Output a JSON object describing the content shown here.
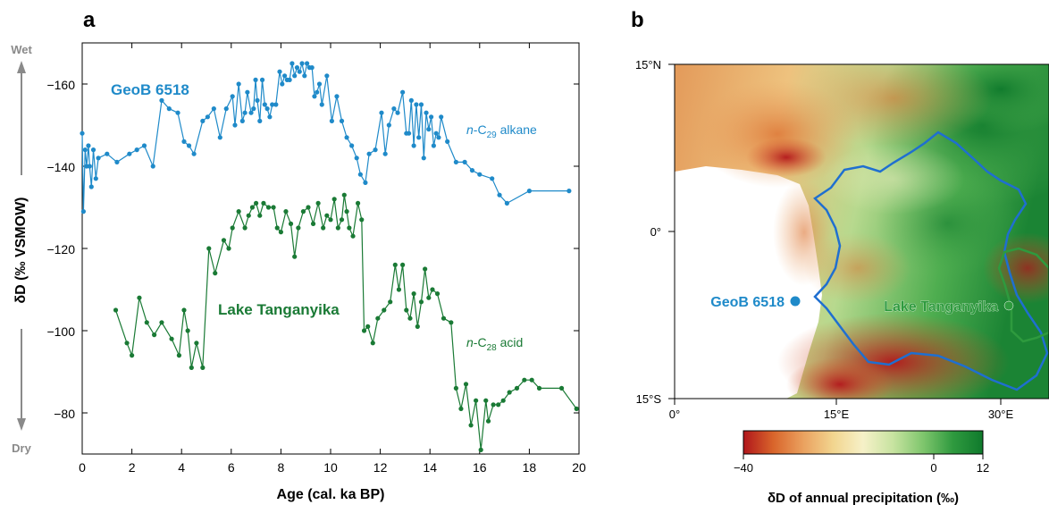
{
  "colors": {
    "blue": "#1f8ac9",
    "green": "#1a7a35",
    "axis_gray": "#8a8a8a",
    "river_blue": "#1f6fd0",
    "river_green": "#2e9a3e"
  },
  "panel_a": {
    "label": "a",
    "xlabel": "Age (cal. ka BP)",
    "ylabel": "δD (‰ VSMOW)",
    "wet_label": "Wet",
    "dry_label": "Dry",
    "xticks": [
      "0",
      "2",
      "4",
      "6",
      "8",
      "10",
      "12",
      "14",
      "16",
      "18",
      "20"
    ],
    "yticks": [
      "−160",
      "−140",
      "−120",
      "−100",
      "−80"
    ],
    "annotations": {
      "geob_title": "GeoB 6518",
      "tang_title": "Lake Tanganyika",
      "alkane_label": "n-C29 alkane",
      "acid_label": "n-C28 acid"
    }
  },
  "panel_b": {
    "label": "b",
    "lat_ticks": [
      "15°N",
      "0°",
      "15°S"
    ],
    "lon_ticks": [
      "0°",
      "15°E",
      "30°E"
    ],
    "site_geob": "GeoB 6518",
    "site_tang": "Lake Tanganyika",
    "colorbar_ticks": [
      "−40",
      "0",
      "12"
    ],
    "colorbar_title": "δD of annual precipitation (‰)",
    "colorbar_stops": [
      "#b0161b",
      "#d9652b",
      "#eaa15f",
      "#f2d58f",
      "#f6f1c8",
      "#c7e3a0",
      "#7fc66d",
      "#2f9a3f",
      "#0f7a2c"
    ]
  },
  "chart_data": [
    {
      "type": "line",
      "title": "",
      "xlabel": "Age (cal. ka BP)",
      "ylabel": "δD (‰ VSMOW)",
      "xlim": [
        0,
        20
      ],
      "ylim": [
        -70,
        -170
      ],
      "y_axis_inverted": true,
      "grid": false,
      "series": [
        {
          "name": "n-C29 alkane",
          "x": [
            0,
            0.05,
            0.12,
            0.18,
            0.25,
            0.3,
            0.37,
            0.45,
            0.55,
            0.65,
            1.0,
            1.4,
            1.9,
            2.2,
            2.5,
            2.85,
            3.2,
            3.5,
            3.85,
            4.1,
            4.3,
            4.5,
            4.85,
            5.05,
            5.3,
            5.55,
            5.8,
            6.05,
            6.15,
            6.3,
            6.45,
            6.55,
            6.65,
            6.8,
            6.9,
            6.98,
            7.05,
            7.15,
            7.25,
            7.35,
            7.45,
            7.55,
            7.65,
            7.8,
            7.95,
            8.05,
            8.15,
            8.25,
            8.35,
            8.45,
            8.55,
            8.65,
            8.75,
            8.85,
            8.95,
            9.05,
            9.15,
            9.25,
            9.35,
            9.45,
            9.55,
            9.65,
            9.85,
            10.05,
            10.25,
            10.45,
            10.65,
            10.85,
            11.05,
            11.2,
            11.4,
            11.55,
            11.8,
            12.05,
            12.2,
            12.35,
            12.55,
            12.7,
            12.9,
            13.05,
            13.15,
            13.25,
            13.35,
            13.45,
            13.55,
            13.65,
            13.75,
            13.85,
            13.95,
            14.05,
            14.15,
            14.25,
            14.35,
            14.45,
            14.7,
            15.05,
            15.4,
            15.7,
            16.0,
            16.5,
            16.8,
            17.1,
            18.0,
            19.6
          ],
          "values": [
            -148,
            -129,
            -144,
            -140,
            -145,
            -140,
            -135,
            -144,
            -137,
            -142,
            -143,
            -141,
            -143,
            -144,
            -145,
            -140,
            -156,
            -154,
            -153,
            -146,
            -145,
            -143,
            -151,
            -152,
            -154,
            -147,
            -154,
            -157,
            -150,
            -160,
            -151,
            -153,
            -158,
            -153,
            -154,
            -161,
            -156,
            -151,
            -161,
            -155,
            -154,
            -152,
            -155,
            -155,
            -163,
            -160,
            -162,
            -161,
            -161,
            -165,
            -162,
            -164,
            -163,
            -165,
            -162,
            -165,
            -164,
            -164,
            -157,
            -158,
            -160,
            -155,
            -162,
            -151,
            -157,
            -151,
            -147,
            -145,
            -142,
            -138,
            -136,
            -143,
            -144,
            -153,
            -143,
            -150,
            -154,
            -153,
            -158,
            -148,
            -148,
            -156,
            -145,
            -155,
            -147,
            -155,
            -142,
            -153,
            -149,
            -152,
            -145,
            -148,
            -147,
            -152,
            -146,
            -141,
            -141,
            -139,
            -138,
            -137,
            -133,
            -131,
            -134,
            -134
          ]
        },
        {
          "name": "n-C28 acid",
          "x": [
            1.35,
            1.8,
            2.0,
            2.3,
            2.6,
            2.9,
            3.2,
            3.6,
            3.9,
            4.1,
            4.25,
            4.4,
            4.6,
            4.85,
            5.1,
            5.35,
            5.7,
            5.9,
            6.05,
            6.3,
            6.55,
            6.7,
            6.85,
            7.0,
            7.15,
            7.3,
            7.5,
            7.7,
            7.85,
            8.0,
            8.2,
            8.4,
            8.55,
            8.7,
            8.9,
            9.1,
            9.3,
            9.5,
            9.7,
            9.85,
            10.0,
            10.15,
            10.3,
            10.45,
            10.55,
            10.65,
            10.75,
            10.9,
            11.1,
            11.25,
            11.35,
            11.5,
            11.7,
            11.9,
            12.15,
            12.4,
            12.6,
            12.75,
            12.9,
            13.05,
            13.2,
            13.35,
            13.5,
            13.65,
            13.8,
            13.95,
            14.1,
            14.3,
            14.55,
            14.85,
            15.05,
            15.25,
            15.45,
            15.65,
            15.85,
            16.05,
            16.25,
            16.35,
            16.55,
            16.75,
            16.95,
            17.2,
            17.5,
            17.8,
            18.1,
            18.4,
            19.3,
            19.9
          ],
          "values": [
            -105,
            -97,
            -94,
            -108,
            -102,
            -99,
            -102,
            -98,
            -94,
            -105,
            -100,
            -91,
            -97,
            -91,
            -120,
            -114,
            -122,
            -120,
            -125,
            -129,
            -125,
            -128,
            -130,
            -131,
            -128,
            -131,
            -130,
            -130,
            -125,
            -124,
            -129,
            -126,
            -118,
            -125,
            -129,
            -130,
            -126,
            -131,
            -125,
            -128,
            -127,
            -132,
            -125,
            -127,
            -133,
            -129,
            -125,
            -123,
            -131,
            -127,
            -100,
            -101,
            -97,
            -103,
            -105,
            -107,
            -116,
            -110,
            -116,
            -105,
            -103,
            -109,
            -101,
            -107,
            -115,
            -108,
            -110,
            -109,
            -103,
            -102,
            -86,
            -81,
            -87,
            -77,
            -83,
            -71,
            -83,
            -78,
            -82,
            -82,
            -83,
            -85,
            -86,
            -88,
            -88,
            -86,
            -86,
            -81
          ]
        }
      ]
    }
  ]
}
